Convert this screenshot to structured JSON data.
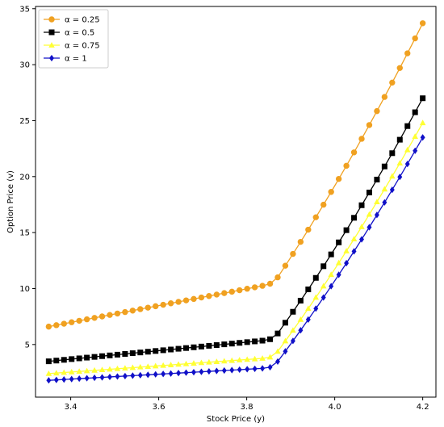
{
  "chart_data": {
    "type": "line",
    "xlabel": "Stock Price (y)",
    "ylabel": "Option Price (v)",
    "xlim": [
      3.32,
      4.23
    ],
    "ylim": [
      0.3,
      35.2
    ],
    "xticks": [
      3.4,
      3.6,
      3.8,
      4.0,
      4.2
    ],
    "xtick_labels": [
      "3.4",
      "3.6",
      "3.8",
      "4.0",
      "4.2"
    ],
    "yticks": [
      5,
      10,
      15,
      20,
      25,
      30,
      35
    ],
    "ytick_labels": [
      "5",
      "10",
      "15",
      "20",
      "25",
      "30",
      "35"
    ],
    "grid": false,
    "legend_position": "top-left",
    "x_range": [
      3.35,
      4.2
    ],
    "num_points": 50,
    "series": [
      {
        "name": "α = 0.25",
        "color": "#f0a121",
        "marker": "circle",
        "knots": [
          [
            3.35,
            6.6
          ],
          [
            3.85,
            10.35
          ],
          [
            3.867,
            10.8
          ],
          [
            4.2,
            33.7
          ]
        ]
      },
      {
        "name": "α = 0.5",
        "color": "#000000",
        "marker": "square",
        "knots": [
          [
            3.35,
            3.5
          ],
          [
            3.85,
            5.4
          ],
          [
            3.867,
            5.8
          ],
          [
            4.2,
            27.0
          ]
        ]
      },
      {
        "name": "α = 0.75",
        "color": "#ffff33",
        "marker": "triangle",
        "knots": [
          [
            3.35,
            2.4
          ],
          [
            3.85,
            3.8
          ],
          [
            3.867,
            4.2
          ],
          [
            4.2,
            24.8
          ]
        ]
      },
      {
        "name": "α = 1",
        "color": "#1010c8",
        "marker": "diamond",
        "knots": [
          [
            3.35,
            1.8
          ],
          [
            3.85,
            2.9
          ],
          [
            3.867,
            3.3
          ],
          [
            4.2,
            23.5
          ]
        ]
      }
    ]
  }
}
